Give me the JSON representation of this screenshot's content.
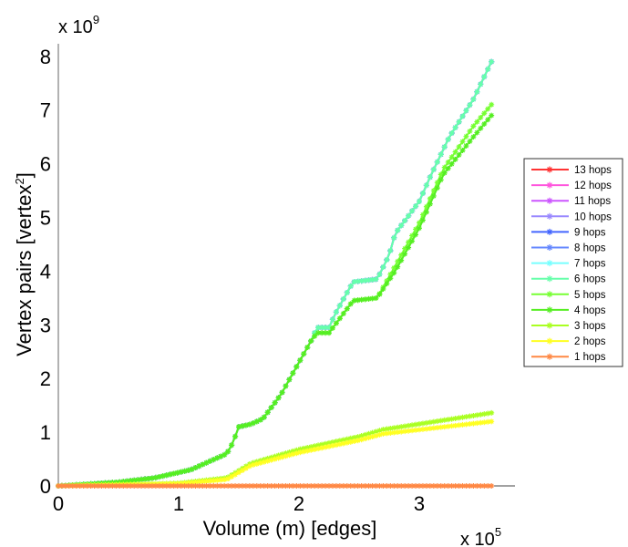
{
  "chart_data": {
    "type": "line",
    "title": "",
    "xlabel": "Volume (m) [edges]",
    "ylabel_main": "Vertex pairs [vertex",
    "ylabel_sup": "2",
    "ylabel_end": "]",
    "x_multiplier": {
      "base": "x 10",
      "exp": "5"
    },
    "y_multiplier": {
      "base": "x 10",
      "exp": "9"
    },
    "xlim": [
      0,
      3.8
    ],
    "ylim": [
      0,
      8.4
    ],
    "xticks": [
      "0",
      "1",
      "2",
      "3"
    ],
    "yticks": [
      "0",
      "1",
      "2",
      "3",
      "4",
      "5",
      "6",
      "7",
      "8"
    ],
    "legend_position": "right",
    "series": [
      {
        "name": "13 hops",
        "color": "#ff3333",
        "curve": "high"
      },
      {
        "name": "12 hops",
        "color": "#ff55dd",
        "curve": "high"
      },
      {
        "name": "11 hops",
        "color": "#cc55ff",
        "curve": "high"
      },
      {
        "name": "10 hops",
        "color": "#9988ff",
        "curve": "high"
      },
      {
        "name": "9 hops",
        "color": "#4466ff",
        "curve": "high"
      },
      {
        "name": "8 hops",
        "color": "#6688ff",
        "curve": "high"
      },
      {
        "name": "7 hops",
        "color": "#77ffff",
        "curve": "high"
      },
      {
        "name": "6 hops",
        "color": "#66ffaa",
        "curve": "high"
      },
      {
        "name": "5 hops",
        "color": "#77ff33",
        "curve": "mid5"
      },
      {
        "name": "4 hops",
        "color": "#55ee22",
        "curve": "mid4"
      },
      {
        "name": "3 hops",
        "color": "#aaff22",
        "curve": "low3"
      },
      {
        "name": "2 hops",
        "color": "#ffff22",
        "curve": "low2"
      },
      {
        "name": "1 hops",
        "color": "#ff8844",
        "curve": "zero"
      }
    ],
    "curves": {
      "high": [
        [
          0,
          0
        ],
        [
          0.5,
          0.07
        ],
        [
          0.8,
          0.15
        ],
        [
          1.0,
          0.25
        ],
        [
          1.1,
          0.3
        ],
        [
          1.25,
          0.45
        ],
        [
          1.4,
          0.6
        ],
        [
          1.45,
          0.8
        ],
        [
          1.5,
          1.1
        ],
        [
          1.6,
          1.15
        ],
        [
          1.7,
          1.25
        ],
        [
          1.85,
          1.7
        ],
        [
          2.1,
          2.7
        ],
        [
          2.15,
          2.95
        ],
        [
          2.25,
          2.95
        ],
        [
          2.3,
          3.2
        ],
        [
          2.45,
          3.8
        ],
        [
          2.65,
          3.85
        ],
        [
          2.75,
          4.3
        ],
        [
          2.8,
          4.7
        ],
        [
          3.0,
          5.3
        ],
        [
          3.1,
          5.8
        ],
        [
          3.25,
          6.5
        ],
        [
          3.45,
          7.2
        ],
        [
          3.6,
          7.9
        ]
      ],
      "mid5": [
        [
          0,
          0
        ],
        [
          0.5,
          0.07
        ],
        [
          0.8,
          0.15
        ],
        [
          1.0,
          0.25
        ],
        [
          1.1,
          0.3
        ],
        [
          1.25,
          0.45
        ],
        [
          1.4,
          0.6
        ],
        [
          1.45,
          0.8
        ],
        [
          1.5,
          1.1
        ],
        [
          1.6,
          1.15
        ],
        [
          1.7,
          1.25
        ],
        [
          1.85,
          1.7
        ],
        [
          2.1,
          2.7
        ],
        [
          2.15,
          2.85
        ],
        [
          2.25,
          2.85
        ],
        [
          2.45,
          3.45
        ],
        [
          2.65,
          3.5
        ],
        [
          2.8,
          4.1
        ],
        [
          3.0,
          4.9
        ],
        [
          3.2,
          5.9
        ],
        [
          3.45,
          6.7
        ],
        [
          3.6,
          7.1
        ]
      ],
      "mid4": [
        [
          0,
          0
        ],
        [
          0.5,
          0.07
        ],
        [
          0.8,
          0.15
        ],
        [
          1.0,
          0.25
        ],
        [
          1.1,
          0.3
        ],
        [
          1.25,
          0.45
        ],
        [
          1.4,
          0.6
        ],
        [
          1.45,
          0.8
        ],
        [
          1.5,
          1.1
        ],
        [
          1.6,
          1.15
        ],
        [
          1.7,
          1.25
        ],
        [
          1.85,
          1.7
        ],
        [
          2.1,
          2.7
        ],
        [
          2.15,
          2.85
        ],
        [
          2.25,
          2.85
        ],
        [
          2.45,
          3.45
        ],
        [
          2.65,
          3.5
        ],
        [
          2.8,
          4.0
        ],
        [
          3.0,
          4.8
        ],
        [
          3.2,
          5.8
        ],
        [
          3.45,
          6.5
        ],
        [
          3.6,
          6.9
        ]
      ],
      "low3": [
        [
          0,
          0
        ],
        [
          1.0,
          0.05
        ],
        [
          1.4,
          0.15
        ],
        [
          1.6,
          0.42
        ],
        [
          2.0,
          0.68
        ],
        [
          2.5,
          0.92
        ],
        [
          2.7,
          1.05
        ],
        [
          3.6,
          1.36
        ]
      ],
      "low2": [
        [
          0,
          0
        ],
        [
          1.0,
          0.04
        ],
        [
          1.4,
          0.12
        ],
        [
          1.6,
          0.38
        ],
        [
          2.0,
          0.62
        ],
        [
          2.5,
          0.85
        ],
        [
          2.7,
          0.97
        ],
        [
          3.6,
          1.2
        ]
      ],
      "zero": [
        [
          0,
          0
        ],
        [
          3.6,
          0
        ]
      ]
    }
  }
}
